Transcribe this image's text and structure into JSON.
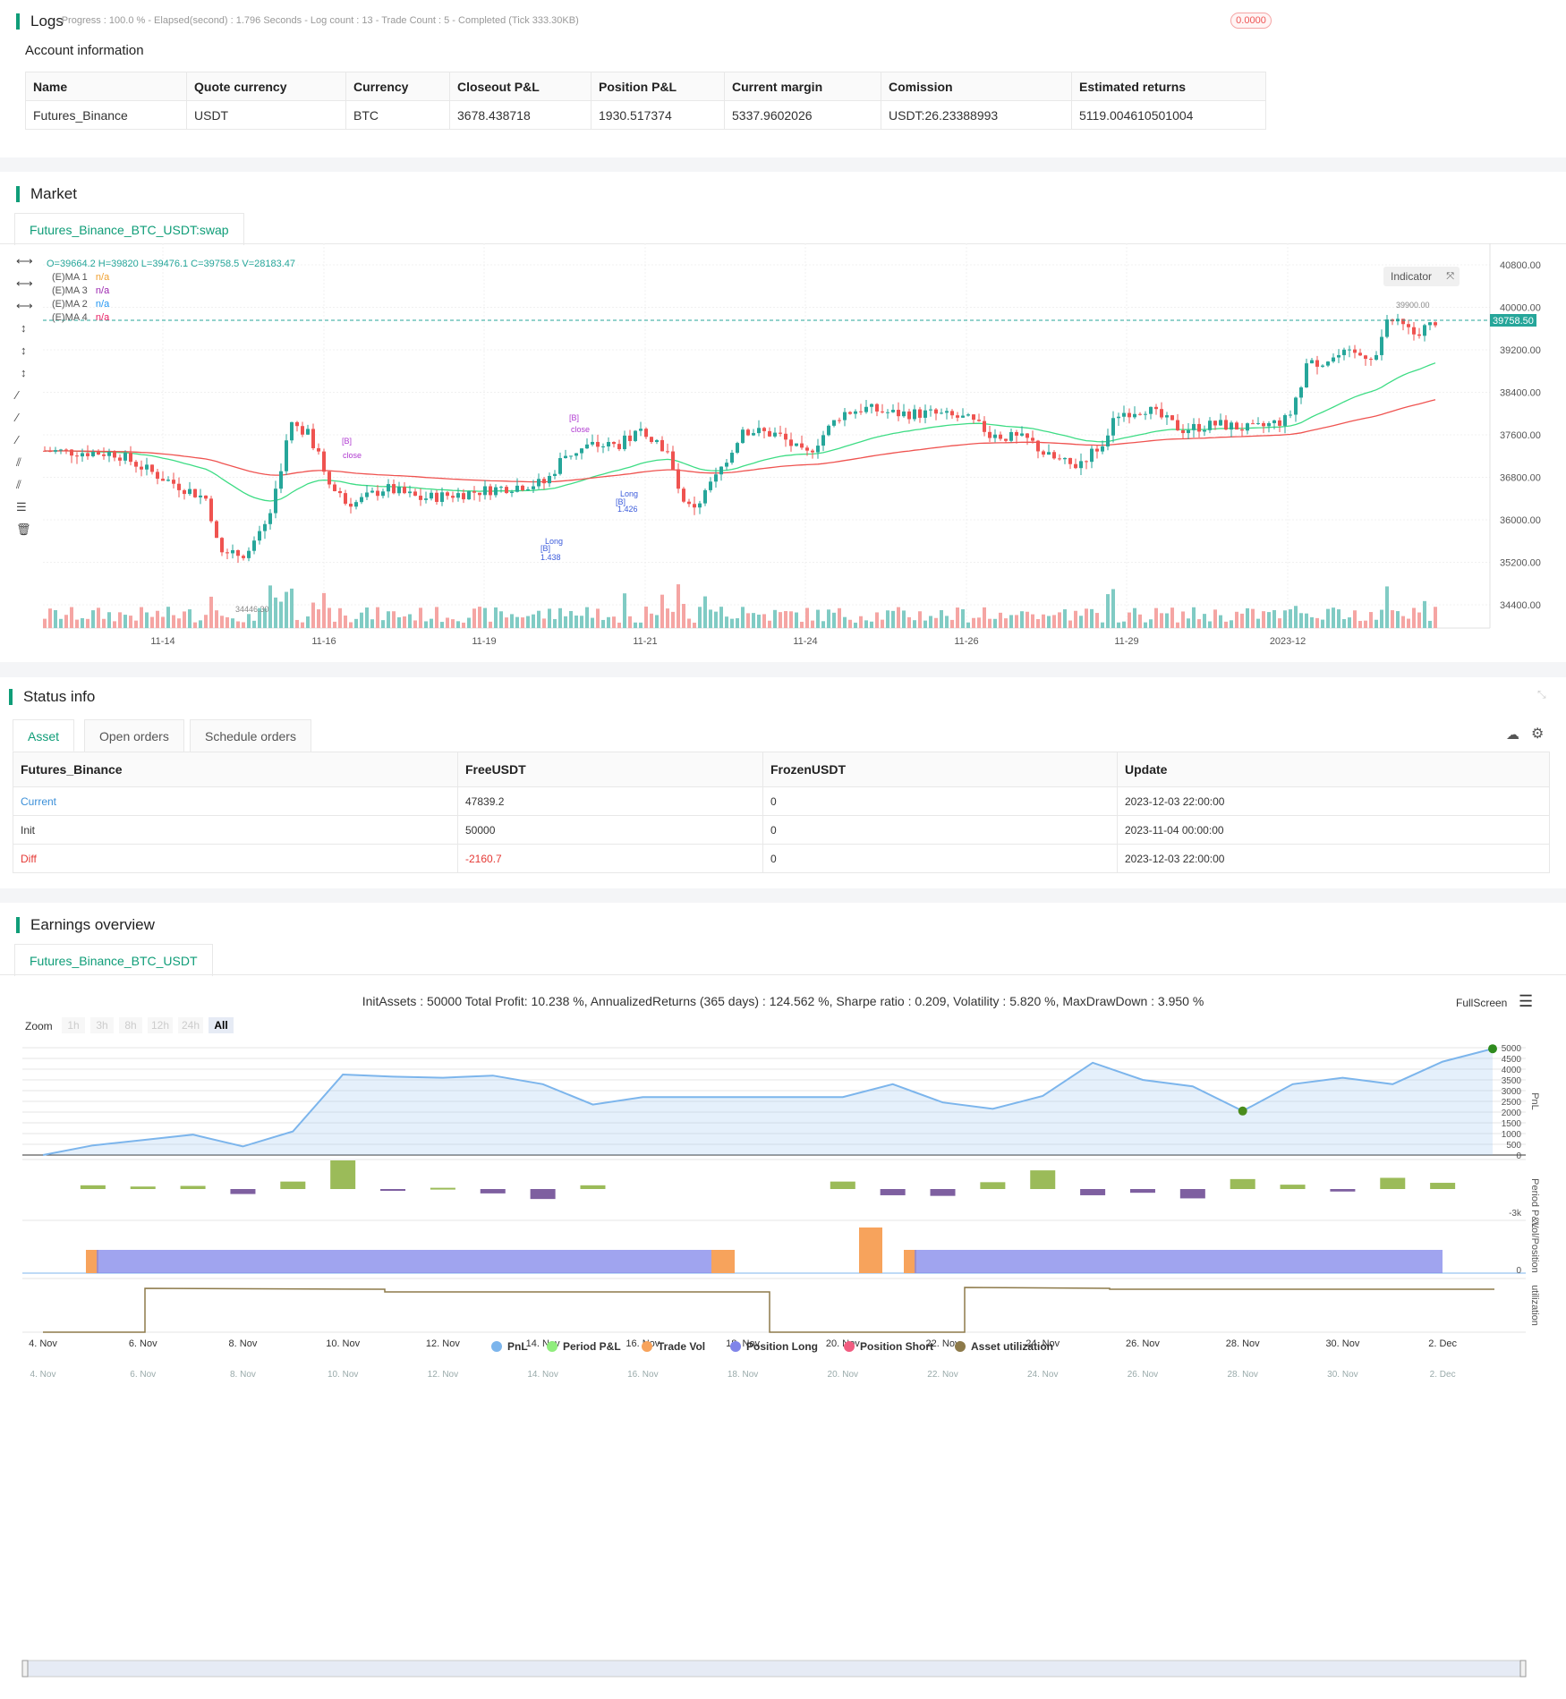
{
  "logs": {
    "title": "Logs",
    "status": "- Progress : 100.0 % - Elapsed(second) : 1.796  Seconds - Log count : 13 - Trade Count : 5 - Completed (Tick 333.30KB)",
    "badge": "0.0000"
  },
  "account": {
    "title": "Account information",
    "headers": [
      "Name",
      "Quote currency",
      "Currency",
      "Closeout P&L",
      "Position P&L",
      "Current margin",
      "Comission",
      "Estimated returns"
    ],
    "row": [
      "Futures_Binance",
      "USDT",
      "BTC",
      "3678.438718",
      "1930.517374",
      "5337.9602026",
      "USDT:26.23388993",
      "5119.004610501004"
    ]
  },
  "market": {
    "title": "Market",
    "tab": "Futures_Binance_BTC_USDT:swap",
    "ohlc": "O=39664.2 H=39820 L=39476.1 C=39758.5 V=28183.47",
    "legend": [
      {
        "name": "(E)MA 1",
        "value": "n/a",
        "color": "#f0a030"
      },
      {
        "name": "(E)MA 3",
        "value": "n/a",
        "color": "#9c27b0"
      },
      {
        "name": "(E)MA 2",
        "value": "n/a",
        "color": "#2196f3"
      },
      {
        "name": "(E)MA 4",
        "value": "n/a",
        "color": "#e91e63"
      }
    ],
    "indicator_button": "Indicator",
    "price_label": "39758.50",
    "high_label": "39900.00",
    "low_label": "34446.30",
    "y_ticks": [
      "40800.00",
      "40000.00",
      "39200.00",
      "38400.00",
      "37600.00",
      "36800.00",
      "36000.00",
      "35200.00",
      "34400.00"
    ],
    "x_ticks": [
      "11-14",
      "11-16",
      "11-19",
      "11-21",
      "11-24",
      "11-26",
      "11-29",
      "2023-12"
    ],
    "annotations": [
      "[B]",
      "close",
      "[B]",
      "close",
      "Long",
      "[B]",
      "1.426",
      "Long",
      "[B]",
      "1.438"
    ]
  },
  "status": {
    "title": "Status info",
    "tabs": [
      "Asset",
      "Open orders",
      "Schedule orders"
    ],
    "headers": [
      "Futures_Binance",
      "FreeUSDT",
      "FrozenUSDT",
      "Update"
    ],
    "rows": [
      [
        "Current",
        "47839.2",
        "0",
        "2023-12-03 22:00:00"
      ],
      [
        "Init",
        "50000",
        "0",
        "2023-11-04 00:00:00"
      ],
      [
        "Diff",
        "-2160.7",
        "0",
        "2023-12-03 22:00:00"
      ]
    ]
  },
  "earnings": {
    "title": "Earnings overview",
    "tab": "Futures_Binance_BTC_USDT",
    "summary": "InitAssets : 50000 Total Profit: 10.238 %, AnnualizedReturns (365 days) : 124.562 %, Sharpe ratio : 0.209, Volatility : 5.820 %, MaxDrawDown : 3.950 %",
    "fullscreen": "FullScreen",
    "zoom_label": "Zoom",
    "zoom_options": [
      "1h",
      "3h",
      "8h",
      "12h",
      "24h",
      "All"
    ],
    "pnl_ticks": [
      "5000",
      "4500",
      "4000",
      "3500",
      "3000",
      "2500",
      "2000",
      "1500",
      "1000",
      "500",
      "0"
    ],
    "period_tick": "-3k",
    "vol_tick": "0",
    "axis_titles": [
      "PnL",
      "Period P&L",
      "Vol/Position",
      "utilization"
    ],
    "x_ticks": [
      "4. Nov",
      "6. Nov",
      "8. Nov",
      "10. Nov",
      "12. Nov",
      "14. Nov",
      "16. Nov",
      "18. Nov",
      "20. Nov",
      "22. Nov",
      "24. Nov",
      "26. Nov",
      "28. Nov",
      "30. Nov",
      "2. Dec"
    ],
    "legend": [
      {
        "name": "PnL",
        "color": "#7cb5ec"
      },
      {
        "name": "Period P&L",
        "color": "#90ed7d"
      },
      {
        "name": "Trade Vol",
        "color": "#f7a35c"
      },
      {
        "name": "Position Long",
        "color": "#8085e9"
      },
      {
        "name": "Position Short",
        "color": "#f15c80"
      },
      {
        "name": "Asset utilization",
        "color": "#8d7a4a"
      }
    ],
    "chart_data": {
      "type": "line",
      "x": [
        "4. Nov",
        "5. Nov",
        "6. Nov",
        "7. Nov",
        "8. Nov",
        "9. Nov",
        "10. Nov",
        "11. Nov",
        "12. Nov",
        "13. Nov",
        "14. Nov",
        "15. Nov",
        "16. Nov",
        "17. Nov",
        "18. Nov",
        "19. Nov",
        "20. Nov",
        "21. Nov",
        "22. Nov",
        "23. Nov",
        "24. Nov",
        "25. Nov",
        "26. Nov",
        "27. Nov",
        "28. Nov",
        "29. Nov",
        "30. Nov",
        "1. Dec",
        "2. Dec",
        "3. Dec"
      ],
      "series": [
        {
          "name": "PnL",
          "values": [
            0,
            450,
            700,
            950,
            400,
            1100,
            3750,
            3650,
            3600,
            3700,
            3300,
            2350,
            2700,
            2700,
            2700,
            2700,
            2700,
            3300,
            2450,
            2150,
            2750,
            4300,
            3500,
            3200,
            2050,
            3300,
            3600,
            3300,
            4350,
            4950
          ]
        },
        {
          "name": "Period P&L",
          "values": [
            0,
            300,
            200,
            250,
            -400,
            600,
            2300,
            -100,
            100,
            -350,
            -800,
            300,
            0,
            0,
            0,
            0,
            600,
            -500,
            -550,
            550,
            1500,
            -500,
            -300,
            -750,
            800,
            350,
            -200,
            900,
            500,
            0
          ]
        }
      ]
    }
  }
}
